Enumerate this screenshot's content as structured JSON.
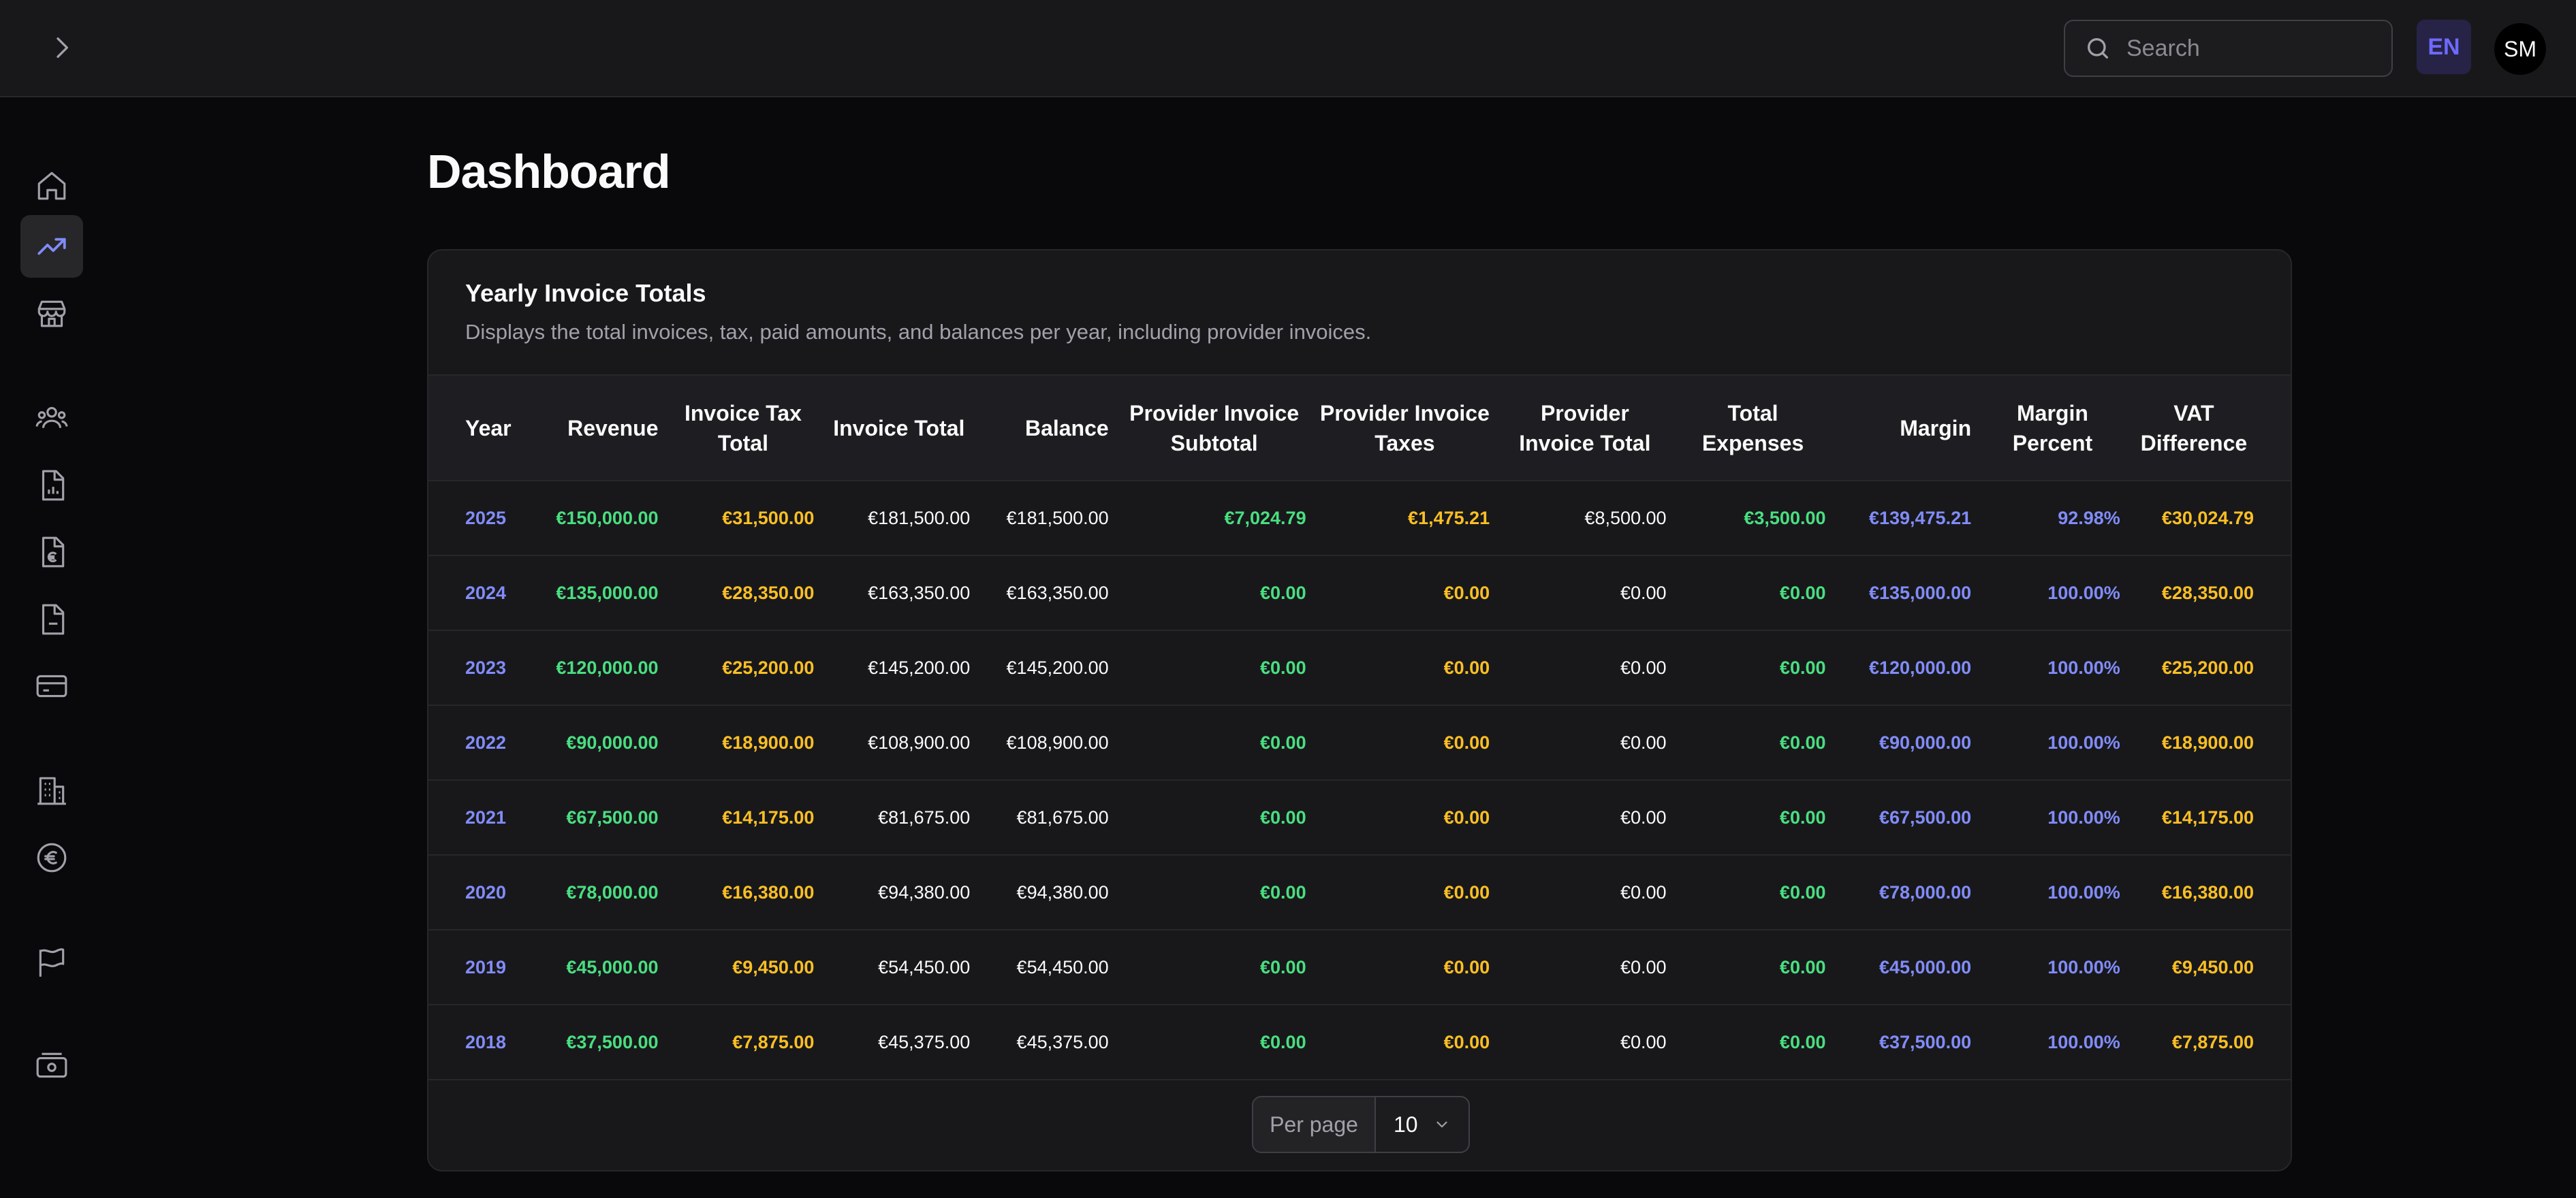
{
  "header": {
    "search_placeholder": "Search",
    "language": "EN",
    "user_initials": "SM"
  },
  "sidebar": {
    "items": [
      {
        "icon": "home-icon",
        "active": false
      },
      {
        "icon": "trending-up-icon",
        "active": true
      },
      {
        "icon": "store-icon",
        "active": false
      },
      {
        "icon": "users-icon",
        "active": false
      },
      {
        "icon": "file-chart-icon",
        "active": false
      },
      {
        "icon": "file-euro-icon",
        "active": false
      },
      {
        "icon": "file-minus-icon",
        "active": false
      },
      {
        "icon": "credit-card-icon",
        "active": false
      },
      {
        "icon": "building-icon",
        "active": false
      },
      {
        "icon": "euro-circle-icon",
        "active": false
      },
      {
        "icon": "flag-icon",
        "active": false
      },
      {
        "icon": "banknote-icon",
        "active": false
      }
    ]
  },
  "page": {
    "title": "Dashboard"
  },
  "card": {
    "title": "Yearly Invoice Totals",
    "description": "Displays the total invoices, tax, paid amounts, and balances per year, including provider invoices."
  },
  "table": {
    "columns": [
      "Year",
      "Revenue",
      "Invoice Tax Total",
      "Invoice Total",
      "Balance",
      "Provider Invoice Subtotal",
      "Provider Invoice Taxes",
      "Provider Invoice Total",
      "Total Expenses",
      "Margin",
      "Margin Percent",
      "VAT Difference"
    ],
    "rows": [
      [
        "2025",
        "€150,000.00",
        "€31,500.00",
        "€181,500.00",
        "€181,500.00",
        "€7,024.79",
        "€1,475.21",
        "€8,500.00",
        "€3,500.00",
        "€139,475.21",
        "92.98%",
        "€30,024.79"
      ],
      [
        "2024",
        "€135,000.00",
        "€28,350.00",
        "€163,350.00",
        "€163,350.00",
        "€0.00",
        "€0.00",
        "€0.00",
        "€0.00",
        "€135,000.00",
        "100.00%",
        "€28,350.00"
      ],
      [
        "2023",
        "€120,000.00",
        "€25,200.00",
        "€145,200.00",
        "€145,200.00",
        "€0.00",
        "€0.00",
        "€0.00",
        "€0.00",
        "€120,000.00",
        "100.00%",
        "€25,200.00"
      ],
      [
        "2022",
        "€90,000.00",
        "€18,900.00",
        "€108,900.00",
        "€108,900.00",
        "€0.00",
        "€0.00",
        "€0.00",
        "€0.00",
        "€90,000.00",
        "100.00%",
        "€18,900.00"
      ],
      [
        "2021",
        "€67,500.00",
        "€14,175.00",
        "€81,675.00",
        "€81,675.00",
        "€0.00",
        "€0.00",
        "€0.00",
        "€0.00",
        "€67,500.00",
        "100.00%",
        "€14,175.00"
      ],
      [
        "2020",
        "€78,000.00",
        "€16,380.00",
        "€94,380.00",
        "€94,380.00",
        "€0.00",
        "€0.00",
        "€0.00",
        "€0.00",
        "€78,000.00",
        "100.00%",
        "€16,380.00"
      ],
      [
        "2019",
        "€45,000.00",
        "€9,450.00",
        "€54,450.00",
        "€54,450.00",
        "€0.00",
        "€0.00",
        "€0.00",
        "€0.00",
        "€45,000.00",
        "100.00%",
        "€9,450.00"
      ],
      [
        "2018",
        "€37,500.00",
        "€7,875.00",
        "€45,375.00",
        "€45,375.00",
        "€0.00",
        "€0.00",
        "€0.00",
        "€0.00",
        "€37,500.00",
        "100.00%",
        "€7,875.00"
      ]
    ]
  },
  "pagination": {
    "per_page_label": "Per page",
    "per_page_value": "10"
  },
  "colors": {
    "accent": "#6d6afe",
    "year": "#818cf8",
    "positive": "#4ade80",
    "tax": "#fbbf24"
  }
}
